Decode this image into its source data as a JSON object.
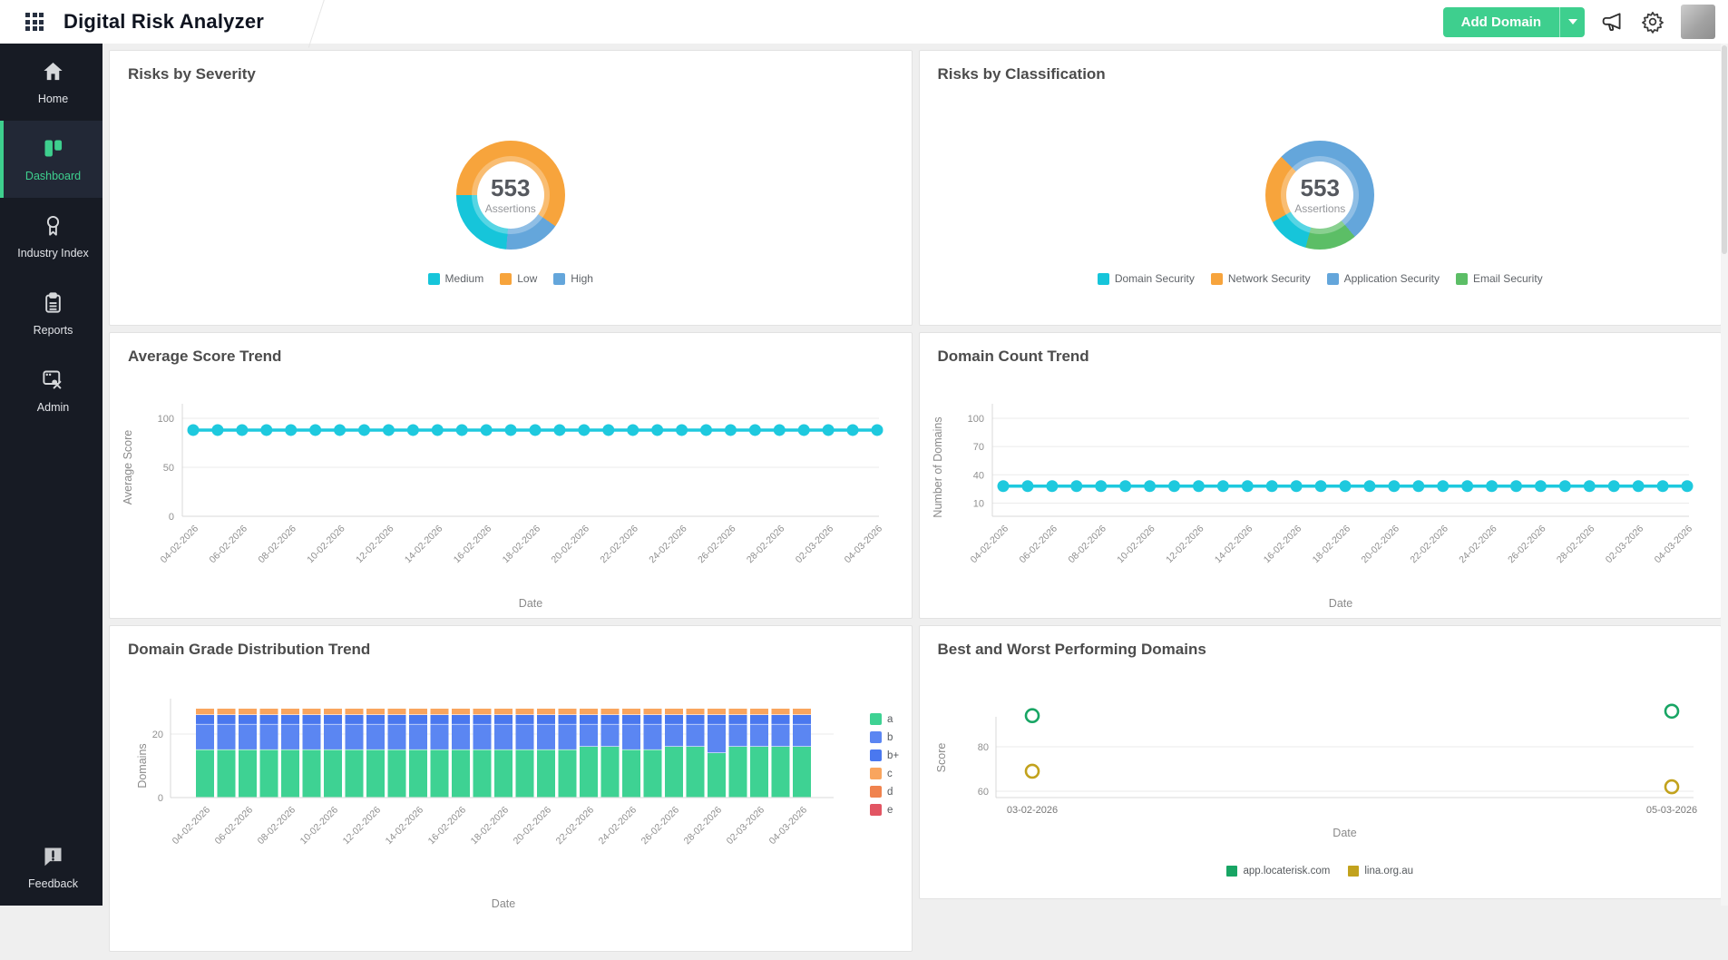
{
  "header": {
    "title": "Digital Risk Analyzer",
    "add_domain_label": "Add Domain"
  },
  "sidebar": {
    "items": [
      {
        "label": "Home",
        "icon": "home-icon",
        "active": false
      },
      {
        "label": "Dashboard",
        "icon": "dashboard-icon",
        "active": true
      },
      {
        "label": "Industry Index",
        "icon": "award-icon",
        "active": false
      },
      {
        "label": "Reports",
        "icon": "clipboard-icon",
        "active": false
      },
      {
        "label": "Admin",
        "icon": "tools-icon",
        "active": false
      }
    ],
    "footer_item": {
      "label": "Feedback",
      "icon": "feedback-icon"
    }
  },
  "icons": {
    "app_grid": "grid-3x3-icon",
    "announcements": "megaphone-icon",
    "settings": "gear-icon",
    "add_domain_caret": "caret-down-icon"
  },
  "colors": {
    "accent_green": "#3ecf8e",
    "sidebar_bg": "#171b24",
    "severity_medium": "#16c5da",
    "severity_low": "#f7a43c",
    "severity_high": "#64a6db",
    "email_security_green": "#5cbe66",
    "line_cyan": "#1ec9de",
    "scatter_green": "#18a564",
    "scatter_olive": "#c2a21d"
  },
  "chart_data": [
    {
      "id": "risks_by_severity",
      "type": "pie",
      "title": "Risks by Severity",
      "center": {
        "value": "553",
        "label": "Assertions"
      },
      "slices": [
        {
          "label": "Medium",
          "value": 131,
          "color": "#16c5da"
        },
        {
          "label": "Low",
          "value": 330,
          "color": "#f7a43c"
        },
        {
          "label": "High",
          "value": 92,
          "color": "#64a6db"
        }
      ],
      "draw_order": [
        "Low",
        "High",
        "Medium"
      ],
      "start_deg": 270,
      "legend_position": "bottom"
    },
    {
      "id": "risks_by_classification",
      "type": "pie",
      "title": "Risks by Classification",
      "center": {
        "value": "553",
        "label": "Assertions"
      },
      "slices": [
        {
          "label": "Domain Security",
          "value": 69,
          "color": "#16c5da"
        },
        {
          "label": "Network Security",
          "value": 115,
          "color": "#f7a43c"
        },
        {
          "label": "Application Security",
          "value": 284,
          "color": "#64a6db"
        },
        {
          "label": "Email Security",
          "value": 85,
          "color": "#5cbe66"
        }
      ],
      "draw_order": [
        "Application Security",
        "Email Security",
        "Domain Security",
        "Network Security"
      ],
      "start_deg": 315,
      "legend_position": "bottom"
    },
    {
      "id": "average_score_trend",
      "type": "line",
      "title": "Average Score Trend",
      "xlabel": "Date",
      "ylabel": "Average Score",
      "yticks": [
        0,
        50,
        100
      ],
      "ylim": [
        0,
        100
      ],
      "color": "#1ec9de",
      "label_every": 2,
      "x": [
        "04-02-2026",
        "05-02-2026",
        "06-02-2026",
        "07-02-2026",
        "08-02-2026",
        "09-02-2026",
        "10-02-2026",
        "11-02-2026",
        "12-02-2026",
        "13-02-2026",
        "14-02-2026",
        "15-02-2026",
        "16-02-2026",
        "17-02-2026",
        "18-02-2026",
        "19-02-2026",
        "20-02-2026",
        "21-02-2026",
        "22-02-2026",
        "23-02-2026",
        "24-02-2026",
        "25-02-2026",
        "26-02-2026",
        "27-02-2026",
        "28-02-2026",
        "01-03-2026",
        "02-03-2026",
        "03-03-2026",
        "04-03-2026"
      ],
      "values": [
        88,
        88,
        88,
        88,
        88,
        88,
        88,
        88,
        88,
        88,
        88,
        88,
        88,
        88,
        88,
        88,
        88,
        88,
        88,
        88,
        88,
        88,
        88,
        88,
        88,
        88,
        88,
        88,
        88
      ]
    },
    {
      "id": "domain_count_trend",
      "type": "line",
      "title": "Domain Count Trend",
      "xlabel": "Date",
      "ylabel": "Number of Domains",
      "yticks": [
        10,
        40,
        70,
        100
      ],
      "ylim": [
        -4,
        100
      ],
      "color": "#1ec9de",
      "label_every": 2,
      "x": [
        "04-02-2026",
        "05-02-2026",
        "06-02-2026",
        "07-02-2026",
        "08-02-2026",
        "09-02-2026",
        "10-02-2026",
        "11-02-2026",
        "12-02-2026",
        "13-02-2026",
        "14-02-2026",
        "15-02-2026",
        "16-02-2026",
        "17-02-2026",
        "18-02-2026",
        "19-02-2026",
        "20-02-2026",
        "21-02-2026",
        "22-02-2026",
        "23-02-2026",
        "24-02-2026",
        "25-02-2026",
        "26-02-2026",
        "27-02-2026",
        "28-02-2026",
        "01-03-2026",
        "02-03-2026",
        "03-03-2026",
        "04-03-2026"
      ],
      "values": [
        28,
        28,
        28,
        28,
        28,
        28,
        28,
        28,
        28,
        28,
        28,
        28,
        28,
        28,
        28,
        28,
        28,
        28,
        28,
        28,
        28,
        28,
        28,
        28,
        28,
        28,
        28,
        28,
        28
      ]
    },
    {
      "id": "domain_grade_distribution_trend",
      "type": "bar",
      "title": "Domain Grade Distribution Trend",
      "xlabel": "Date",
      "ylabel": "Domains",
      "yticks": [
        0,
        20
      ],
      "ylim": [
        0,
        30
      ],
      "label_every": 2,
      "legend_position": "right",
      "categories": [
        "04-02-2026",
        "05-02-2026",
        "06-02-2026",
        "07-02-2026",
        "08-02-2026",
        "09-02-2026",
        "10-02-2026",
        "11-02-2026",
        "12-02-2026",
        "13-02-2026",
        "14-02-2026",
        "15-02-2026",
        "16-02-2026",
        "17-02-2026",
        "18-02-2026",
        "19-02-2026",
        "20-02-2026",
        "21-02-2026",
        "22-02-2026",
        "23-02-2026",
        "24-02-2026",
        "25-02-2026",
        "26-02-2026",
        "27-02-2026",
        "28-02-2026",
        "01-03-2026",
        "02-03-2026",
        "03-03-2026",
        "04-03-2026"
      ],
      "series": [
        {
          "name": "a",
          "color": "#3ed293",
          "values": [
            15,
            15,
            15,
            15,
            15,
            15,
            15,
            15,
            15,
            15,
            15,
            15,
            15,
            15,
            15,
            15,
            15,
            15,
            16,
            16,
            15,
            15,
            16,
            16,
            14,
            16,
            16,
            16,
            16
          ]
        },
        {
          "name": "b",
          "color": "#5b86f2",
          "values": [
            8,
            8,
            8,
            8,
            8,
            8,
            8,
            8,
            8,
            8,
            8,
            8,
            8,
            8,
            8,
            8,
            8,
            8,
            7,
            7,
            8,
            8,
            7,
            7,
            9,
            7,
            7,
            7,
            7
          ]
        },
        {
          "name": "b+",
          "color": "#4a78ef",
          "values": [
            3,
            3,
            3,
            3,
            3,
            3,
            3,
            3,
            3,
            3,
            3,
            3,
            3,
            3,
            3,
            3,
            3,
            3,
            3,
            3,
            3,
            3,
            3,
            3,
            3,
            3,
            3,
            3,
            3
          ]
        },
        {
          "name": "c",
          "color": "#f9a55e",
          "values": [
            2,
            2,
            2,
            2,
            2,
            2,
            2,
            2,
            2,
            2,
            2,
            2,
            2,
            2,
            2,
            2,
            2,
            2,
            2,
            2,
            2,
            2,
            2,
            2,
            2,
            2,
            2,
            2,
            2
          ]
        },
        {
          "name": "d",
          "color": "#f0834e",
          "values": [
            0,
            0,
            0,
            0,
            0,
            0,
            0,
            0,
            0,
            0,
            0,
            0,
            0,
            0,
            0,
            0,
            0,
            0,
            0,
            0,
            0,
            0,
            0,
            0,
            0,
            0,
            0,
            0,
            0
          ]
        },
        {
          "name": "e",
          "color": "#e25563",
          "values": [
            0,
            0,
            0,
            0,
            0,
            0,
            0,
            0,
            0,
            0,
            0,
            0,
            0,
            0,
            0,
            0,
            0,
            0,
            0,
            0,
            0,
            0,
            0,
            0,
            0,
            0,
            0,
            0,
            0
          ]
        }
      ]
    },
    {
      "id": "best_worst_domains",
      "type": "scatter",
      "title": "Best and Worst Performing Domains",
      "xlabel": "Date",
      "ylabel": "Score",
      "yticks": [
        60,
        80
      ],
      "ylim": [
        55,
        102
      ],
      "legend_position": "bottom",
      "x_categories": [
        "03-02-2026",
        "05-03-2026"
      ],
      "series": [
        {
          "name": "app.locaterisk.com",
          "color": "#18a564",
          "values": [
            94,
            96
          ]
        },
        {
          "name": "lina.org.au",
          "color": "#c2a21d",
          "values": [
            69,
            62
          ]
        }
      ]
    }
  ]
}
